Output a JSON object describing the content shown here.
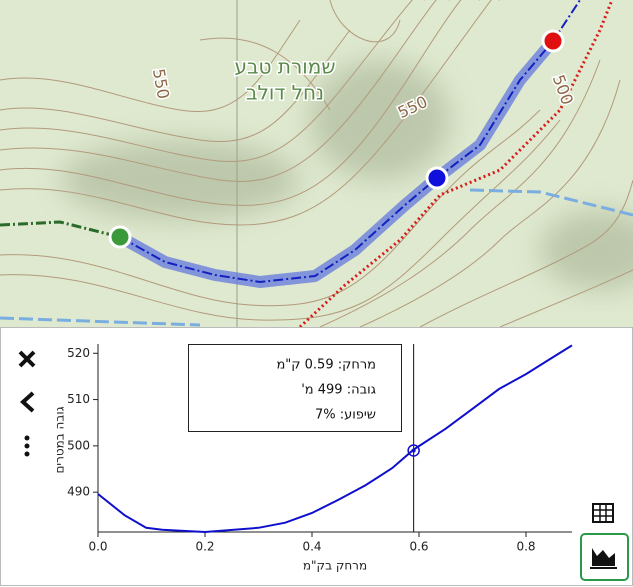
{
  "map": {
    "labels": [
      "שמורת טבע",
      "נחל דולב",
      "550",
      "550",
      "500"
    ]
  },
  "chart_data": {
    "type": "line",
    "x_label": "מרחק בק\"מ",
    "y_label": "גובה במטרים",
    "x": [
      0.0,
      0.05,
      0.09,
      0.12,
      0.2,
      0.3,
      0.35,
      0.4,
      0.45,
      0.5,
      0.55,
      0.59,
      0.65,
      0.7,
      0.75,
      0.8,
      0.85,
      0.886
    ],
    "values": [
      489.6,
      485,
      482.3,
      481.9,
      481.4,
      482.3,
      483.4,
      485.5,
      488.4,
      491.5,
      495.2,
      499.2,
      503.7,
      508,
      512.3,
      515.5,
      519.1,
      521.7
    ],
    "color": "#1010cc",
    "xlim": [
      0,
      0.886
    ],
    "ylim": [
      481.4,
      522
    ],
    "xticks": [
      {
        "value": 0,
        "label": "0.0"
      },
      0.2,
      0.4,
      0.6,
      0.8
    ],
    "yticks": [
      490,
      500,
      510,
      520
    ],
    "cursor": {
      "x": 0.59,
      "y": 499
    },
    "tooltip": [
      "מרחק: 0.59 ק\"מ",
      "גובה: 499 מ'",
      "שיפוע: 7%"
    ]
  }
}
